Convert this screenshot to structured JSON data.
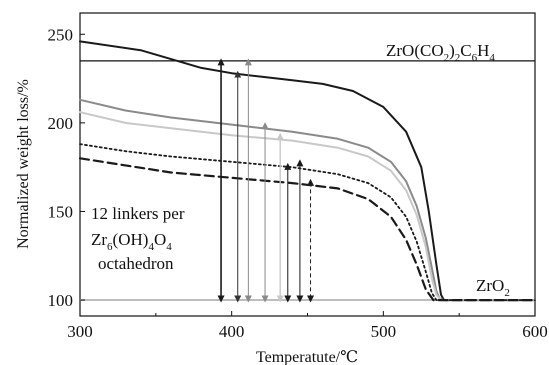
{
  "chart_data": {
    "type": "line",
    "title": "",
    "xlabel": "Temperatute/℃",
    "ylabel": "Normalized weight loss/%",
    "xlim": [
      300,
      600
    ],
    "ylim": [
      91,
      262
    ],
    "x_ticks": [
      "300",
      "400",
      "500",
      "600"
    ],
    "y_ticks": [
      "100",
      "150",
      "200",
      "250"
    ],
    "grid": false,
    "legend": "none",
    "reference_lines": [
      {
        "y": 235,
        "label": "ZrO(CO₂)₂C₆H₄",
        "label_base": "ZrO(CO",
        "label_sub1": "2",
        "label_mid": ")",
        "label_sub2": "2",
        "label_mid2": "C",
        "label_sub3": "6",
        "label_mid3": "H",
        "label_sub4": "4"
      },
      {
        "y": 100,
        "label": "ZrO₂",
        "label_base": "ZrO",
        "label_sub": "2"
      }
    ],
    "annotation": {
      "line1": "12 linkers per",
      "line2_a": "Zr",
      "line2_b": "6",
      "line2_c": "(OH)",
      "line2_d": "4",
      "line2_e": "O",
      "line2_f": "4",
      "line3": "octahedron"
    },
    "series": [
      {
        "color": "#1a1a1a",
        "dash": "solid",
        "width": 2.0,
        "x": [
          300,
          340,
          360,
          380,
          400,
          420,
          440,
          460,
          480,
          500,
          515,
          525,
          530,
          535,
          538,
          540,
          542,
          545,
          600
        ],
        "y": [
          246,
          241,
          236,
          231,
          228,
          226,
          224,
          222,
          218,
          209,
          195,
          175,
          150,
          120,
          103,
          100,
          100,
          100,
          100
        ]
      },
      {
        "color": "#8a8a8a",
        "dash": "solid",
        "width": 2.0,
        "x": [
          300,
          330,
          360,
          400,
          440,
          470,
          490,
          505,
          515,
          522,
          528,
          532,
          535,
          537,
          540,
          600
        ],
        "y": [
          213,
          207,
          203,
          199,
          195,
          191,
          186,
          178,
          167,
          153,
          135,
          118,
          105,
          101,
          100,
          100
        ]
      },
      {
        "color": "#c8c8c8",
        "dash": "solid",
        "width": 2.0,
        "x": [
          300,
          330,
          360,
          400,
          440,
          470,
          490,
          505,
          515,
          522,
          528,
          532,
          535,
          538,
          600
        ],
        "y": [
          206,
          200,
          197,
          193,
          190,
          186,
          181,
          173,
          162,
          148,
          130,
          112,
          103,
          100,
          100
        ]
      },
      {
        "color": "#1a1a1a",
        "dash": "dotted",
        "width": 1.8,
        "x": [
          300,
          330,
          360,
          400,
          440,
          470,
          490,
          505,
          515,
          522,
          528,
          532,
          535,
          537,
          600
        ],
        "y": [
          188,
          184,
          181,
          178,
          175,
          171,
          166,
          158,
          147,
          133,
          116,
          104,
          100,
          100,
          100
        ]
      },
      {
        "color": "#1a1a1a",
        "dash": "dashed",
        "width": 2.2,
        "x": [
          300,
          330,
          360,
          400,
          440,
          470,
          490,
          505,
          515,
          522,
          528,
          533,
          536,
          600
        ],
        "y": [
          180,
          176,
          172,
          169,
          166,
          163,
          157,
          147,
          134,
          120,
          106,
          100,
          100,
          100
        ]
      }
    ],
    "arrows": [
      {
        "x": 393,
        "y_top": 235,
        "y_bottom": 100,
        "color": "#1a1a1a",
        "dash": "solid",
        "width": 1.6
      },
      {
        "x": 404,
        "y_top": 228,
        "y_bottom": 100,
        "color": "#333333",
        "dash": "solid",
        "width": 1.0
      },
      {
        "x": 411,
        "y_top": 235,
        "y_bottom": 100,
        "color": "#8a8a8a",
        "dash": "solid",
        "width": 1.0
      },
      {
        "x": 422,
        "y_top": 199,
        "y_bottom": 100,
        "color": "#8a8a8a",
        "dash": "solid",
        "width": 1.0
      },
      {
        "x": 432,
        "y_top": 193,
        "y_bottom": 100,
        "color": "#c8c8c8",
        "dash": "solid",
        "width": 1.4
      },
      {
        "x": 437,
        "y_top": 176,
        "y_bottom": 100,
        "color": "#1a1a1a",
        "dash": "solid",
        "width": 1.0
      },
      {
        "x": 445,
        "y_top": 178,
        "y_bottom": 100,
        "color": "#1a1a1a",
        "dash": "solid",
        "width": 1.0
      },
      {
        "x": 452,
        "y_top": 167,
        "y_bottom": 100,
        "color": "#1a1a1a",
        "dash": "dashed",
        "width": 1.0
      }
    ]
  }
}
